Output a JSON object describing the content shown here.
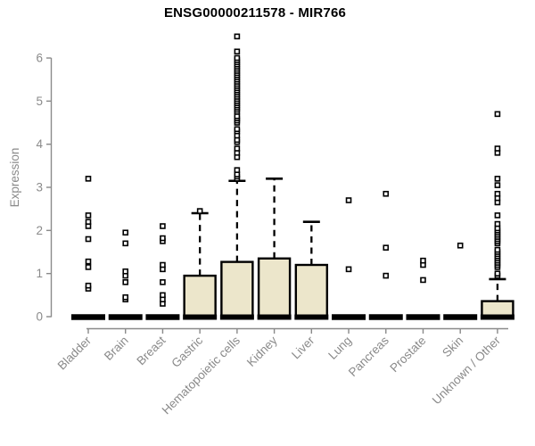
{
  "chart_data": {
    "type": "boxplot",
    "title": "ENSG00000211578 - MIR766",
    "ylabel": "Expression",
    "xlabel": "",
    "ylim": [
      0,
      6.6
    ],
    "yticks": [
      0,
      1,
      2,
      3,
      4,
      5,
      6
    ],
    "grid": false,
    "legend": "none",
    "colors": {
      "box_fill": "#ece6cb",
      "box_stroke": "#000000",
      "median": "#000000",
      "whisker": "#000000",
      "outlier_stroke": "#000000",
      "outlier_fill": "#ffffff",
      "axis": "#8a8a8a",
      "tick_text": "#8a8a8a",
      "title_text": "#000000",
      "background": "#ffffff"
    },
    "categories": [
      "Bladder",
      "Brain",
      "Breast",
      "Gastric",
      "Hematopoietic cells",
      "Kidney",
      "Liver",
      "Lung",
      "Pancreas",
      "Prostate",
      "Skin",
      "Unknown / Other"
    ],
    "series": [
      {
        "name": "Bladder",
        "q1": 0,
        "median": 0,
        "q3": 0,
        "whisker_low": 0,
        "whisker_high": 0,
        "outliers": [
          0.65,
          0.72,
          1.15,
          1.28,
          1.8,
          2.1,
          2.2,
          2.35,
          3.2
        ]
      },
      {
        "name": "Brain",
        "q1": 0,
        "median": 0,
        "q3": 0,
        "whisker_low": 0,
        "whisker_high": 0,
        "outliers": [
          0.4,
          0.45,
          0.8,
          0.95,
          1.05,
          1.7,
          1.95
        ]
      },
      {
        "name": "Breast",
        "q1": 0,
        "median": 0,
        "q3": 0,
        "whisker_low": 0,
        "whisker_high": 0,
        "outliers": [
          0.3,
          0.4,
          0.5,
          0.8,
          1.1,
          1.2,
          1.75,
          1.82,
          2.1
        ]
      },
      {
        "name": "Gastric",
        "q1": 0,
        "median": 0,
        "q3": 0.95,
        "whisker_low": 0,
        "whisker_high": 2.4,
        "outliers": [
          2.45
        ]
      },
      {
        "name": "Hematopoietic cells",
        "q1": 0,
        "median": 0,
        "q3": 1.27,
        "whisker_low": 0,
        "whisker_high": 3.15,
        "outliers": [
          3.2,
          3.25,
          3.3,
          3.4,
          3.7,
          3.8,
          3.9,
          4.05,
          4.1,
          4.2,
          4.3,
          4.35,
          4.5,
          4.55,
          4.6,
          4.65,
          4.75,
          4.8,
          4.85,
          4.9,
          4.95,
          5.0,
          5.05,
          5.1,
          5.15,
          5.2,
          5.25,
          5.3,
          5.35,
          5.4,
          5.45,
          5.5,
          5.55,
          5.6,
          5.65,
          5.7,
          5.75,
          5.8,
          5.85,
          5.9,
          5.95,
          6.0,
          6.15,
          6.5
        ]
      },
      {
        "name": "Kidney",
        "q1": 0,
        "median": 0,
        "q3": 1.35,
        "whisker_low": 0,
        "whisker_high": 3.2,
        "outliers": []
      },
      {
        "name": "Liver",
        "q1": 0,
        "median": 0,
        "q3": 1.2,
        "whisker_low": 0,
        "whisker_high": 2.2,
        "outliers": []
      },
      {
        "name": "Lung",
        "q1": 0,
        "median": 0,
        "q3": 0,
        "whisker_low": 0,
        "whisker_high": 0,
        "outliers": [
          1.1,
          2.7
        ]
      },
      {
        "name": "Pancreas",
        "q1": 0,
        "median": 0,
        "q3": 0,
        "whisker_low": 0,
        "whisker_high": 0,
        "outliers": [
          0.95,
          1.6,
          2.85
        ]
      },
      {
        "name": "Prostate",
        "q1": 0,
        "median": 0,
        "q3": 0,
        "whisker_low": 0,
        "whisker_high": 0,
        "outliers": [
          0.85,
          1.2,
          1.3
        ]
      },
      {
        "name": "Skin",
        "q1": 0,
        "median": 0,
        "q3": 0,
        "whisker_low": 0,
        "whisker_high": 0,
        "outliers": [
          1.65
        ]
      },
      {
        "name": "Unknown / Other",
        "q1": 0,
        "median": 0,
        "q3": 0.36,
        "whisker_low": 0,
        "whisker_high": 0.87,
        "outliers": [
          0.95,
          1.0,
          1.15,
          1.2,
          1.25,
          1.3,
          1.35,
          1.4,
          1.45,
          1.5,
          1.55,
          1.7,
          1.75,
          1.8,
          1.85,
          1.9,
          1.95,
          2.0,
          2.05,
          2.15,
          2.35,
          2.65,
          2.75,
          2.85,
          3.05,
          3.2,
          3.8,
          3.9,
          4.7
        ]
      }
    ]
  }
}
